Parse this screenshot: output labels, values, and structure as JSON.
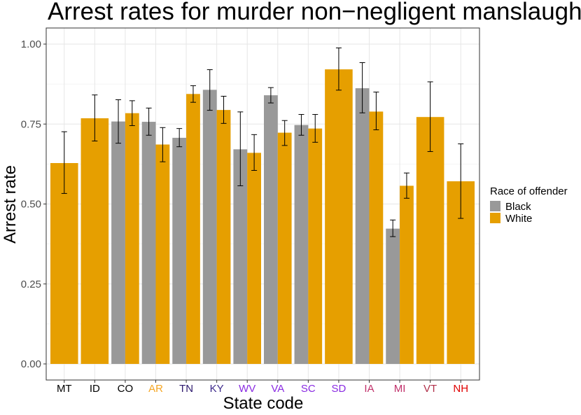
{
  "chart_data": {
    "type": "bar",
    "title": "Arrest rates for murder non−negligent manslaughter",
    "xlabel": "State code",
    "ylabel": "Arrest rate",
    "ylim": [
      0,
      1.03
    ],
    "y_ticks": [
      "0.00",
      "0.25",
      "0.50",
      "0.75",
      "1.00"
    ],
    "y_tick_values": [
      0,
      0.25,
      0.5,
      0.75,
      1.0
    ],
    "grid": true,
    "legend": {
      "title": "Race of offender",
      "position": "right"
    },
    "categories": [
      "MT",
      "ID",
      "CO",
      "AR",
      "TN",
      "KY",
      "WV",
      "VA",
      "SC",
      "SD",
      "IA",
      "MI",
      "VT",
      "NH"
    ],
    "category_label_colors": [
      "#000000",
      "#000000",
      "#000000",
      "#f5a623",
      "#2e1a6e",
      "#3d2a8c",
      "#8a2be2",
      "#8a2be2",
      "#8a2be2",
      "#8a2be2",
      "#c0306a",
      "#c0306a",
      "#b0304a",
      "#e00000"
    ],
    "series": [
      {
        "name": "Black",
        "color": "#999999",
        "values": [
          null,
          null,
          0.758,
          0.757,
          0.707,
          0.857,
          0.671,
          0.84,
          0.747,
          null,
          0.862,
          0.423,
          null,
          null
        ],
        "error_low": [
          null,
          null,
          0.69,
          0.715,
          0.679,
          0.793,
          0.557,
          0.816,
          0.715,
          null,
          0.785,
          0.398,
          null,
          null
        ],
        "error_high": [
          null,
          null,
          0.826,
          0.8,
          0.736,
          0.92,
          0.788,
          0.864,
          0.78,
          null,
          0.942,
          0.45,
          null,
          null
        ]
      },
      {
        "name": "White",
        "color": "#e69f00",
        "values": [
          0.628,
          0.768,
          0.784,
          0.686,
          0.844,
          0.794,
          0.66,
          0.723,
          0.736,
          0.921,
          0.789,
          0.557,
          0.772,
          0.571
        ],
        "error_low": [
          0.533,
          0.697,
          0.745,
          0.632,
          0.818,
          0.752,
          0.605,
          0.683,
          0.693,
          0.856,
          0.732,
          0.518,
          0.664,
          0.455
        ],
        "error_high": [
          0.726,
          0.841,
          0.823,
          0.739,
          0.87,
          0.837,
          0.717,
          0.761,
          0.78,
          0.988,
          0.85,
          0.597,
          0.882,
          0.688
        ]
      }
    ]
  }
}
